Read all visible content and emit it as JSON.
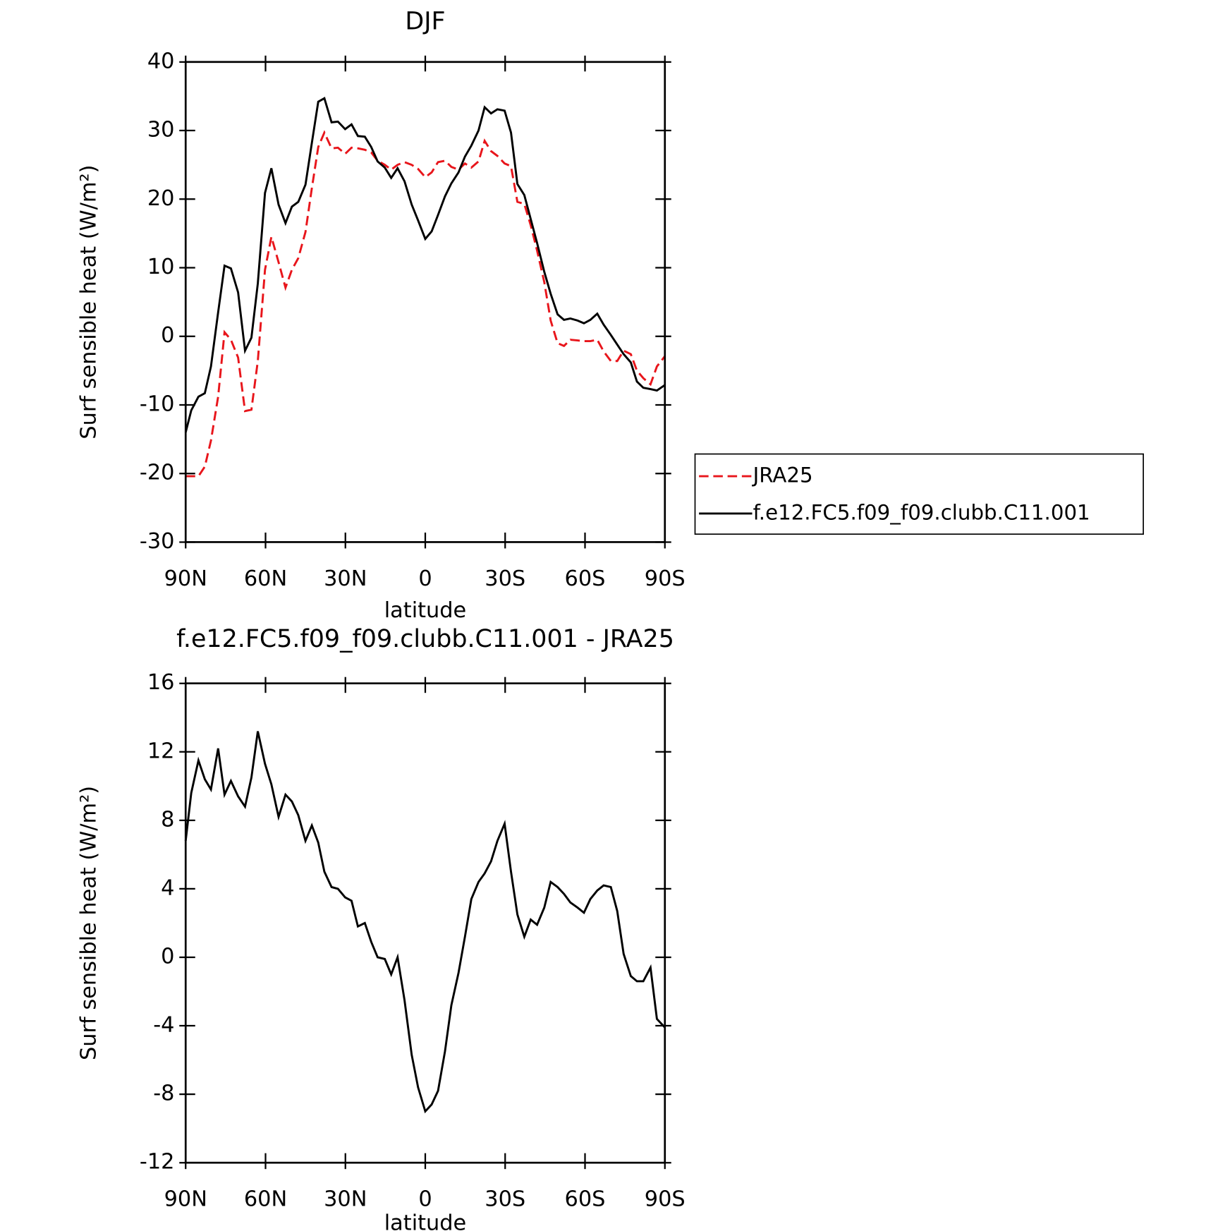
{
  "chart_data": [
    {
      "type": "line",
      "title": "DJF",
      "y_label": "Surf sensible heat (W/m²)",
      "x_label": "latitude",
      "x": [
        90,
        87.9,
        85.2,
        82.8,
        80.5,
        77.8,
        75.4,
        73,
        70.3,
        67.7,
        65.3,
        62.9,
        60.2,
        57.8,
        55.1,
        52.5,
        50.1,
        47.7,
        45,
        42.6,
        40.2,
        37.9,
        35.2,
        32.8,
        30.1,
        27.7,
        25.3,
        22.7,
        20.3,
        17.9,
        15.2,
        12.8,
        10.4,
        7.8,
        5.1,
        2.7,
        0,
        -2.4,
        -4.8,
        -7.4,
        -9.8,
        -12.5,
        -14.9,
        -17.3,
        -20,
        -22.3,
        -24.7,
        -27.1,
        -29.8,
        -32.2,
        -34.6,
        -37.2,
        -39.6,
        -42,
        -44.7,
        -47.1,
        -49.7,
        -52.1,
        -54.5,
        -57.2,
        -59.6,
        -62,
        -64.6,
        -67,
        -69.7,
        -72.1,
        -74.5,
        -77.2,
        -79.5,
        -81.9,
        -84.6,
        -87,
        -90
      ],
      "series": [
        {
          "name": "JRA25",
          "color": "#e8151b",
          "linestyle": "dashed",
          "values": [
            -20.4,
            -20.4,
            -20.4,
            -19.0,
            -15.2,
            -8.8,
            0.6,
            -0.5,
            -3.1,
            -10.9,
            -10.7,
            -3.6,
            9.7,
            14.5,
            10.8,
            7.1,
            9.7,
            11.4,
            15.2,
            21.6,
            27.6,
            29.7,
            27.4,
            27.5,
            26.6,
            27.5,
            27.4,
            27.2,
            26.8,
            25.6,
            25.0,
            24.3,
            25.0,
            25.4,
            25.0,
            24.4,
            23.2,
            23.9,
            25.4,
            25.6,
            24.7,
            24.3,
            25.2,
            24.6,
            25.5,
            28.5,
            27.0,
            26.3,
            25.2,
            24.8,
            19.6,
            19.3,
            16.2,
            12.5,
            7.9,
            2.3,
            -1.0,
            -1.4,
            -0.5,
            -0.6,
            -0.7,
            -0.7,
            -0.5,
            -2.2,
            -3.6,
            -3.6,
            -2.1,
            -2.6,
            -5.0,
            -6.1,
            -7.0,
            -4.4,
            -2.9
          ]
        },
        {
          "name": "f.e12.FC5.f09_f09.clubb.C11.001",
          "color": "#000000",
          "linestyle": "solid",
          "values": [
            -14.0,
            -10.8,
            -8.8,
            -8.3,
            -4.4,
            3.5,
            10.3,
            9.9,
            6.4,
            -2.1,
            -0.2,
            7.7,
            20.9,
            24.5,
            19.2,
            16.5,
            18.9,
            19.6,
            22.1,
            28.2,
            34.2,
            34.7,
            31.2,
            31.3,
            30.2,
            30.9,
            29.2,
            29.1,
            27.6,
            25.5,
            24.6,
            23.1,
            24.5,
            22.6,
            19.2,
            16.9,
            14.2,
            15.3,
            17.7,
            20.4,
            22.3,
            23.9,
            26.2,
            27.8,
            30.0,
            33.4,
            32.5,
            33.1,
            32.9,
            29.7,
            22.2,
            20.6,
            17.1,
            13.6,
            9.4,
            6.2,
            3.2,
            2.4,
            2.6,
            2.3,
            1.9,
            2.4,
            3.3,
            1.7,
            0.2,
            -1.2,
            -2.6,
            -3.8,
            -6.6,
            -7.5,
            -7.7,
            -7.9,
            -7.1
          ]
        }
      ],
      "xlim": [
        90,
        -90
      ],
      "xticks": [
        {
          "value": 90,
          "label": "90N"
        },
        {
          "value": 60,
          "label": "60N"
        },
        {
          "value": 30,
          "label": "30N"
        },
        0,
        {
          "value": -30,
          "label": "30S"
        },
        {
          "value": -60,
          "label": "60S"
        },
        {
          "value": -90,
          "label": "90S"
        }
      ],
      "ylim": [
        -30,
        40
      ],
      "yticks": [
        -30,
        -20,
        -10,
        0,
        10,
        20,
        30,
        40
      ],
      "legend": "outside-right"
    },
    {
      "type": "line",
      "title": "f.e12.FC5.f09_f09.clubb.C11.001 - JRA25",
      "y_label": "Surf sensible heat (W/m²)",
      "x_label": "latitude",
      "x": [
        90,
        87.9,
        85.2,
        82.8,
        80.5,
        77.8,
        75.4,
        73,
        70.3,
        67.7,
        65.3,
        62.9,
        60.2,
        57.8,
        55.1,
        52.5,
        50.1,
        47.7,
        45,
        42.6,
        40.2,
        37.9,
        35.2,
        32.8,
        30.1,
        27.7,
        25.3,
        22.7,
        20.3,
        17.9,
        15.2,
        12.8,
        10.4,
        7.8,
        5.1,
        2.7,
        0,
        -2.4,
        -4.8,
        -7.4,
        -9.8,
        -12.5,
        -14.9,
        -17.3,
        -20,
        -22.3,
        -24.7,
        -27.1,
        -29.8,
        -32.2,
        -34.6,
        -37.2,
        -39.6,
        -42,
        -44.7,
        -47.1,
        -49.7,
        -52.1,
        -54.5,
        -57.2,
        -59.6,
        -62,
        -64.6,
        -67,
        -69.7,
        -72.1,
        -74.5,
        -77.2,
        -79.5,
        -81.9,
        -84.6,
        -87,
        -90
      ],
      "series": [
        {
          "color": "#000000",
          "linestyle": "solid",
          "values": [
            6.8,
            9.6,
            11.5,
            10.4,
            9.8,
            12.2,
            9.5,
            10.3,
            9.4,
            8.8,
            10.5,
            13.2,
            11.3,
            10.1,
            8.2,
            9.5,
            9.1,
            8.3,
            6.8,
            7.7,
            6.7,
            5.0,
            4.1,
            4.0,
            3.5,
            3.3,
            1.8,
            2.0,
            0.9,
            0.0,
            -0.1,
            -1.0,
            0.0,
            -2.5,
            -5.7,
            -7.6,
            -9.0,
            -8.6,
            -7.8,
            -5.5,
            -2.8,
            -0.9,
            1.2,
            3.4,
            4.4,
            4.9,
            5.6,
            6.8,
            7.8,
            5.0,
            2.5,
            1.2,
            2.2,
            1.9,
            2.9,
            4.4,
            4.1,
            3.7,
            3.2,
            2.9,
            2.6,
            3.4,
            3.9,
            4.2,
            4.1,
            2.7,
            0.2,
            -1.1,
            -1.4,
            -1.4,
            -0.6,
            -3.6,
            -4.1
          ]
        }
      ],
      "xlim": [
        90,
        -90
      ],
      "xticks": [
        {
          "value": 90,
          "label": "90N"
        },
        {
          "value": 60,
          "label": "60N"
        },
        {
          "value": 30,
          "label": "30N"
        },
        0,
        {
          "value": -30,
          "label": "30S"
        },
        {
          "value": -60,
          "label": "60S"
        },
        {
          "value": -90,
          "label": "90S"
        }
      ],
      "ylim": [
        -12,
        16
      ],
      "yticks": [
        -12,
        -8,
        -4,
        0,
        4,
        8,
        12,
        16
      ]
    }
  ]
}
